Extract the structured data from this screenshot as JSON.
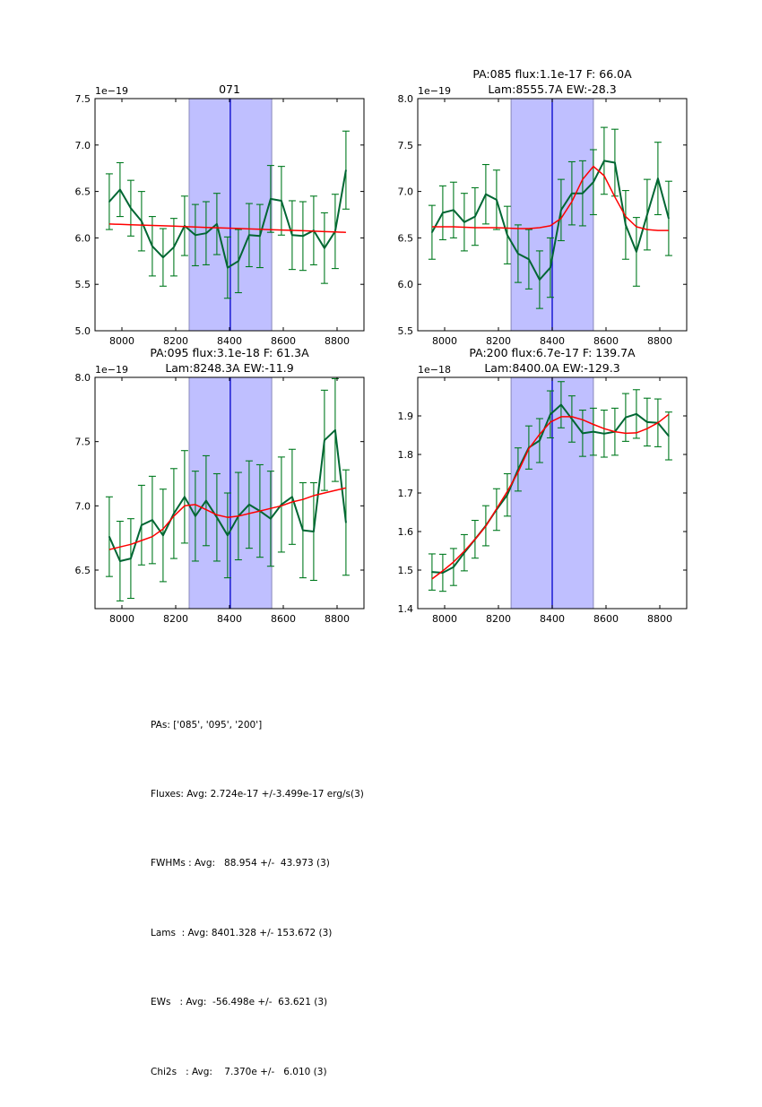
{
  "chart_data": [
    {
      "type": "line",
      "panel": "top-left",
      "title": "071",
      "title_lines": [
        "071"
      ],
      "y_offset_label": "1e−19",
      "xlabel": "",
      "ylabel": "",
      "xlim": [
        7900,
        8900
      ],
      "ylim": [
        5.0,
        7.5
      ],
      "xticks": [
        8000,
        8200,
        8400,
        8600,
        8800
      ],
      "xtick_labels": [
        "8000",
        "8200",
        "8400",
        "8600",
        "8800"
      ],
      "yticks": [
        5.0,
        5.5,
        6.0,
        6.5,
        7.0,
        7.5
      ],
      "ytick_labels": [
        "5.0",
        "5.5",
        "6.0",
        "6.5",
        "7.0",
        "7.5"
      ],
      "grid": false,
      "shaded_region": [
        8250,
        8557
      ],
      "vline": 8403,
      "x": [
        7953,
        7993,
        8033,
        8073,
        8113,
        8153,
        8193,
        8233,
        8273,
        8313,
        8353,
        8393,
        8433,
        8473,
        8513,
        8553,
        8593,
        8633,
        8673,
        8713,
        8753,
        8793,
        8833
      ],
      "series": [
        {
          "name": "data",
          "color": "#006633",
          "values": [
            6.39,
            6.52,
            6.32,
            6.18,
            5.91,
            5.79,
            5.9,
            6.13,
            6.03,
            6.05,
            6.15,
            5.68,
            5.75,
            6.03,
            6.02,
            6.42,
            6.4,
            6.03,
            6.02,
            6.08,
            5.89,
            6.07,
            6.73
          ],
          "errors": [
            0.3,
            0.29,
            0.3,
            0.32,
            0.32,
            0.31,
            0.31,
            0.32,
            0.33,
            0.34,
            0.33,
            0.33,
            0.34,
            0.34,
            0.34,
            0.36,
            0.37,
            0.37,
            0.37,
            0.37,
            0.38,
            0.4,
            0.42
          ]
        },
        {
          "name": "fit",
          "color": "#ff0000",
          "values": [
            6.15,
            6.146,
            6.142,
            6.138,
            6.134,
            6.13,
            6.126,
            6.122,
            6.117,
            6.113,
            6.109,
            6.105,
            6.101,
            6.097,
            6.093,
            6.089,
            6.085,
            6.081,
            6.077,
            6.072,
            6.068,
            6.064,
            6.06
          ]
        }
      ]
    },
    {
      "type": "line",
      "panel": "top-right",
      "title": "PA:085 flux:1.1e-17 F: 66.0A\nLam:8555.7A EW:-28.3",
      "title_lines": [
        "PA:085 flux:1.1e-17 F: 66.0A",
        "Lam:8555.7A EW:-28.3"
      ],
      "y_offset_label": "1e−19",
      "xlabel": "",
      "ylabel": "",
      "xlim": [
        7900,
        8900
      ],
      "ylim": [
        5.5,
        8.0
      ],
      "xticks": [
        8000,
        8200,
        8400,
        8600,
        8800
      ],
      "xtick_labels": [
        "8000",
        "8200",
        "8400",
        "8600",
        "8800"
      ],
      "yticks": [
        5.5,
        6.0,
        6.5,
        7.0,
        7.5,
        8.0
      ],
      "ytick_labels": [
        "5.5",
        "6.0",
        "6.5",
        "7.0",
        "7.5",
        "8.0"
      ],
      "grid": false,
      "shaded_region": [
        8247,
        8553
      ],
      "vline": 8400,
      "x": [
        7953,
        7993,
        8033,
        8073,
        8113,
        8153,
        8193,
        8233,
        8273,
        8313,
        8353,
        8393,
        8433,
        8473,
        8513,
        8553,
        8593,
        8633,
        8673,
        8713,
        8753,
        8793,
        8833
      ],
      "series": [
        {
          "name": "data",
          "color": "#006633",
          "values": [
            6.56,
            6.77,
            6.8,
            6.67,
            6.73,
            6.97,
            6.91,
            6.53,
            6.33,
            6.27,
            6.05,
            6.18,
            6.8,
            6.98,
            6.98,
            7.1,
            7.33,
            7.31,
            6.64,
            6.35,
            6.75,
            7.14,
            6.71
          ],
          "errors": [
            0.29,
            0.29,
            0.3,
            0.31,
            0.31,
            0.32,
            0.32,
            0.31,
            0.31,
            0.32,
            0.31,
            0.32,
            0.33,
            0.34,
            0.35,
            0.35,
            0.36,
            0.36,
            0.37,
            0.37,
            0.38,
            0.39,
            0.4
          ]
        },
        {
          "name": "fit",
          "color": "#ff0000",
          "values": [
            6.62,
            6.62,
            6.62,
            6.615,
            6.61,
            6.61,
            6.61,
            6.605,
            6.6,
            6.6,
            6.61,
            6.63,
            6.71,
            6.89,
            7.13,
            7.27,
            7.17,
            6.94,
            6.73,
            6.62,
            6.59,
            6.58,
            6.58
          ]
        }
      ]
    },
    {
      "type": "line",
      "panel": "bottom-left",
      "title": "PA:095 flux:3.1e-18 F: 61.3A\nLam:8248.3A EW:-11.9",
      "title_lines": [
        "PA:095 flux:3.1e-18 F: 61.3A",
        "Lam:8248.3A EW:-11.9"
      ],
      "y_offset_label": "1e−19",
      "xlabel": "",
      "ylabel": "",
      "xlim": [
        7900,
        8900
      ],
      "ylim": [
        6.2,
        8.0
      ],
      "xticks": [
        8000,
        8200,
        8400,
        8600,
        8800
      ],
      "xtick_labels": [
        "8000",
        "8200",
        "8400",
        "8600",
        "8800"
      ],
      "yticks": [
        6.5,
        7.0,
        7.5,
        8.0
      ],
      "ytick_labels": [
        "6.5",
        "7.0",
        "7.5",
        "8.0"
      ],
      "grid": false,
      "shaded_region": [
        8250,
        8557
      ],
      "vline": 8403,
      "x": [
        7953,
        7993,
        8033,
        8073,
        8113,
        8153,
        8193,
        8233,
        8273,
        8313,
        8353,
        8393,
        8433,
        8473,
        8513,
        8553,
        8593,
        8633,
        8673,
        8713,
        8753,
        8793,
        8833
      ],
      "series": [
        {
          "name": "data",
          "color": "#006633",
          "values": [
            6.76,
            6.57,
            6.59,
            6.85,
            6.89,
            6.77,
            6.94,
            7.07,
            6.92,
            7.04,
            6.91,
            6.77,
            6.92,
            7.01,
            6.96,
            6.9,
            7.01,
            7.07,
            6.81,
            6.8,
            7.51,
            7.59,
            6.87
          ],
          "errors": [
            0.31,
            0.31,
            0.31,
            0.31,
            0.34,
            0.36,
            0.35,
            0.36,
            0.35,
            0.35,
            0.34,
            0.33,
            0.34,
            0.34,
            0.36,
            0.37,
            0.37,
            0.37,
            0.37,
            0.38,
            0.39,
            0.4,
            0.41
          ]
        },
        {
          "name": "fit",
          "color": "#ff0000",
          "values": [
            6.66,
            6.68,
            6.7,
            6.73,
            6.76,
            6.82,
            6.92,
            7.0,
            7.01,
            6.97,
            6.93,
            6.91,
            6.92,
            6.94,
            6.96,
            6.98,
            7.0,
            7.03,
            7.05,
            7.08,
            7.1,
            7.12,
            7.14
          ]
        }
      ]
    },
    {
      "type": "line",
      "panel": "bottom-right",
      "title": "PA:200 flux:6.7e-17 F: 139.7A\nLam:8400.0A EW:-129.3",
      "title_lines": [
        "PA:200 flux:6.7e-17 F: 139.7A",
        "Lam:8400.0A EW:-129.3"
      ],
      "y_offset_label": "1e−18",
      "xlabel": "",
      "ylabel": "",
      "xlim": [
        7900,
        8900
      ],
      "ylim": [
        1.4,
        2.0
      ],
      "xticks": [
        8000,
        8200,
        8400,
        8600,
        8800
      ],
      "xtick_labels": [
        "8000",
        "8200",
        "8400",
        "8600",
        "8800"
      ],
      "yticks": [
        1.4,
        1.5,
        1.6,
        1.7,
        1.8,
        1.9
      ],
      "ytick_labels": [
        "1.4",
        "1.5",
        "1.6",
        "1.7",
        "1.8",
        "1.9"
      ],
      "grid": false,
      "shaded_region": [
        8247,
        8553
      ],
      "vline": 8400,
      "x": [
        7953,
        7993,
        8033,
        8073,
        8113,
        8153,
        8193,
        8233,
        8273,
        8313,
        8353,
        8393,
        8433,
        8473,
        8513,
        8553,
        8593,
        8633,
        8673,
        8713,
        8753,
        8793,
        8833
      ],
      "series": [
        {
          "name": "data",
          "color": "#006633",
          "values": [
            1.495,
            1.493,
            1.508,
            1.545,
            1.58,
            1.615,
            1.657,
            1.695,
            1.761,
            1.818,
            1.836,
            1.904,
            1.929,
            1.892,
            1.855,
            1.859,
            1.854,
            1.859,
            1.896,
            1.905,
            1.884,
            1.882,
            1.848
          ],
          "errors": [
            0.047,
            0.048,
            0.048,
            0.047,
            0.049,
            0.052,
            0.054,
            0.055,
            0.056,
            0.056,
            0.057,
            0.061,
            0.06,
            0.06,
            0.06,
            0.061,
            0.061,
            0.061,
            0.062,
            0.063,
            0.062,
            0.062,
            0.062
          ]
        },
        {
          "name": "fit",
          "color": "#ff0000",
          "values": [
            1.477,
            1.498,
            1.521,
            1.549,
            1.58,
            1.614,
            1.659,
            1.704,
            1.754,
            1.815,
            1.852,
            1.884,
            1.898,
            1.898,
            1.89,
            1.878,
            1.867,
            1.859,
            1.855,
            1.856,
            1.867,
            1.882,
            1.904
          ]
        }
      ]
    }
  ],
  "style": {
    "shade_color": "#bfbfff",
    "shade_edge_color": "#8888bb",
    "vline_color": "#0000cc",
    "errorbar_color": "#007a1f"
  },
  "summary": {
    "lines": [
      "PAs: ['085', '095', '200']",
      "Fluxes: Avg: 2.724e-17 +/-3.499e-17 erg/s(3)",
      "FWHMs : Avg:   88.954 +/-  43.973 (3)",
      "Lams  : Avg: 8401.328 +/- 153.672 (3)",
      "EWs   : Avg:  -56.498e +/-  63.621 (3)",
      "Chi2s   : Avg:    7.370e +/-   6.010 (3)"
    ]
  }
}
